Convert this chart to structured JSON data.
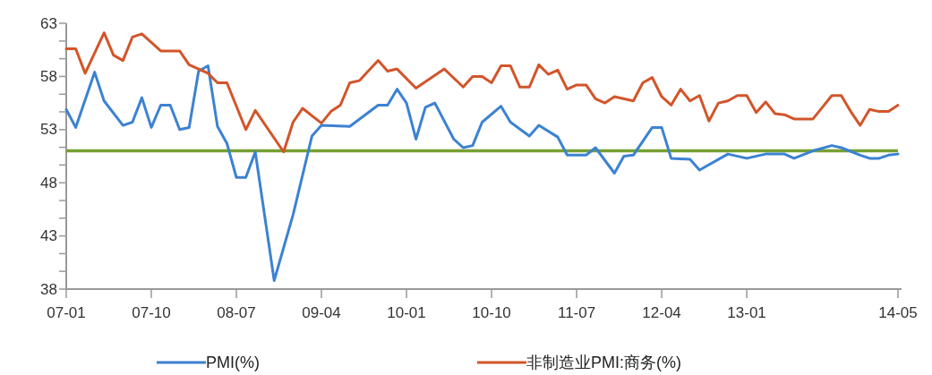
{
  "chart_data": {
    "type": "line",
    "xlim": [
      "2007-01",
      "2014-05"
    ],
    "xticks": [
      {
        "value": "2007-01",
        "label": "07-01"
      },
      {
        "value": "2007-10",
        "label": "07-10"
      },
      {
        "value": "2008-07",
        "label": "08-07"
      },
      {
        "value": "2009-04",
        "label": "09-04"
      },
      {
        "value": "2010-01",
        "label": "10-01"
      },
      {
        "value": "2010-10",
        "label": "10-10"
      },
      {
        "value": "2011-07",
        "label": "11-07"
      },
      {
        "value": "2012-04",
        "label": "12-04"
      },
      {
        "value": "2013-01",
        "label": "13-01"
      },
      {
        "value": "2014-05",
        "label": "14-05"
      }
    ],
    "ylim": [
      38,
      63
    ],
    "yticks": [
      38,
      {
        "value": 39.67,
        "label": null
      },
      {
        "value": 41.33,
        "label": null
      },
      43,
      {
        "value": 44.67,
        "label": null
      },
      {
        "value": 46.33,
        "label": null
      },
      48,
      {
        "value": 49.67,
        "label": null
      },
      {
        "value": 51.33,
        "label": null
      },
      53,
      {
        "value": 54.67,
        "label": null
      },
      {
        "value": 56.33,
        "label": null
      },
      58,
      {
        "value": 59.67,
        "label": null
      },
      {
        "value": 61.33,
        "label": null
      },
      63
    ],
    "grid": false,
    "legend": "bottom",
    "marker": "none",
    "line_style": "solid",
    "ref_lines": [
      {
        "axis": "y",
        "value": 51,
        "color": "#77a033"
      }
    ],
    "series": [
      {
        "name": "PMI(%)",
        "color": "#3c82d2",
        "x": [
          "2007-01",
          "2007-02",
          "2007-04",
          "2007-05",
          "2007-07",
          "2007-08",
          "2007-09",
          "2007-10",
          "2007-11",
          "2007-12",
          "2008-01",
          "2008-02",
          "2008-03",
          "2008-04",
          "2008-05",
          "2008-06",
          "2008-07",
          "2008-08",
          "2008-09",
          "2008-11",
          "2009-01",
          "2009-03",
          "2009-04",
          "2009-07",
          "2009-10",
          "2009-11",
          "2009-12",
          "2010-01",
          "2010-02",
          "2010-03",
          "2010-04",
          "2010-06",
          "2010-07",
          "2010-08",
          "2010-09",
          "2010-11",
          "2010-12",
          "2011-02",
          "2011-03",
          "2011-05",
          "2011-06",
          "2011-08",
          "2011-09",
          "2011-11",
          "2011-12",
          "2012-01",
          "2012-03",
          "2012-04",
          "2012-05",
          "2012-07",
          "2012-08",
          "2012-11",
          "2013-01",
          "2013-03",
          "2013-05",
          "2013-06",
          "2013-08",
          "2013-10",
          "2013-11",
          "2014-01",
          "2014-02",
          "2014-03",
          "2014-04",
          "2014-05"
        ],
        "values": [
          54.9,
          53.2,
          58.4,
          55.7,
          53.4,
          53.7,
          56.0,
          53.2,
          55.3,
          55.3,
          53.0,
          53.2,
          58.5,
          59.0,
          53.3,
          51.7,
          48.5,
          48.5,
          50.9,
          38.8,
          45.0,
          52.4,
          53.4,
          53.3,
          55.3,
          55.3,
          56.8,
          55.5,
          52.1,
          55.1,
          55.5,
          52.1,
          51.3,
          51.5,
          53.7,
          55.2,
          53.7,
          52.4,
          53.4,
          52.3,
          50.6,
          50.6,
          51.3,
          48.9,
          50.5,
          50.6,
          53.2,
          53.2,
          50.3,
          50.2,
          49.2,
          50.7,
          50.3,
          50.7,
          50.7,
          50.3,
          51.0,
          51.5,
          51.3,
          50.6,
          50.3,
          50.3,
          50.6,
          50.7
        ]
      },
      {
        "name": "非制造业PMI:商务(%)",
        "color": "#d2552a",
        "x": [
          "2007-01",
          "2007-02",
          "2007-03",
          "2007-05",
          "2007-06",
          "2007-07",
          "2007-08",
          "2007-09",
          "2007-11",
          "2008-01",
          "2008-02",
          "2008-04",
          "2008-05",
          "2008-06",
          "2008-08",
          "2008-09",
          "2008-12",
          "2009-01",
          "2009-02",
          "2009-04",
          "2009-05",
          "2009-06",
          "2009-07",
          "2009-08",
          "2009-10",
          "2009-11",
          "2009-12",
          "2010-02",
          "2010-05",
          "2010-07",
          "2010-08",
          "2010-09",
          "2010-10",
          "2010-11",
          "2010-12",
          "2011-01",
          "2011-02",
          "2011-03",
          "2011-04",
          "2011-05",
          "2011-06",
          "2011-07",
          "2011-08",
          "2011-09",
          "2011-10",
          "2011-11",
          "2012-01",
          "2012-02",
          "2012-03",
          "2012-04",
          "2012-05",
          "2012-06",
          "2012-07",
          "2012-08",
          "2012-09",
          "2012-10",
          "2012-11",
          "2012-12",
          "2013-01",
          "2013-02",
          "2013-03",
          "2013-04",
          "2013-05",
          "2013-06",
          "2013-08",
          "2013-09",
          "2013-10",
          "2013-11",
          "2013-12",
          "2014-01",
          "2014-02",
          "2014-03",
          "2014-04",
          "2014-05"
        ],
        "values": [
          60.6,
          60.6,
          58.3,
          62.1,
          60.0,
          59.5,
          61.7,
          62.0,
          60.4,
          60.4,
          59.1,
          58.3,
          57.4,
          57.4,
          53.0,
          54.8,
          50.9,
          53.7,
          55.0,
          53.6,
          54.7,
          55.3,
          57.4,
          57.6,
          59.5,
          58.5,
          58.7,
          56.9,
          58.7,
          57.0,
          58.0,
          58.0,
          57.4,
          59.0,
          59.0,
          57.0,
          57.0,
          59.1,
          58.2,
          58.6,
          56.8,
          57.2,
          57.2,
          55.9,
          55.5,
          56.1,
          55.7,
          57.4,
          57.9,
          56.1,
          55.3,
          56.8,
          55.7,
          56.2,
          53.8,
          55.5,
          55.7,
          56.2,
          56.2,
          54.6,
          55.6,
          54.5,
          54.4,
          54.0,
          54.0,
          55.1,
          56.2,
          56.2,
          54.7,
          53.4,
          54.9,
          54.7,
          54.7,
          55.3
        ]
      }
    ]
  }
}
